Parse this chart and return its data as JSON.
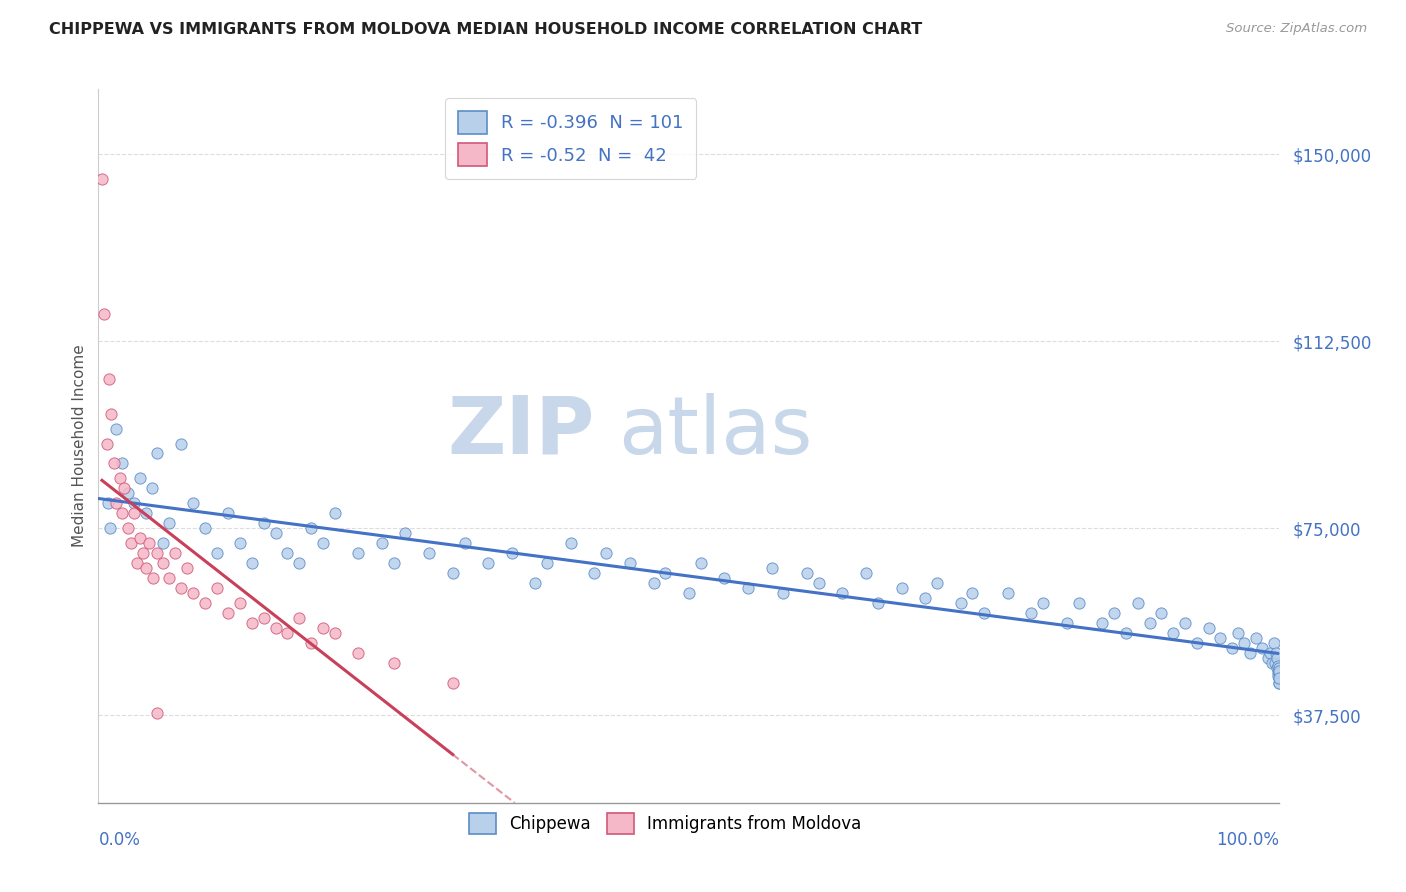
{
  "title": "CHIPPEWA VS IMMIGRANTS FROM MOLDOVA MEDIAN HOUSEHOLD INCOME CORRELATION CHART",
  "source": "Source: ZipAtlas.com",
  "ylabel": "Median Household Income",
  "yticks": [
    37500,
    75000,
    112500,
    150000
  ],
  "ytick_labels": [
    "$37,500",
    "$75,000",
    "$112,500",
    "$150,000"
  ],
  "xmin": 0.0,
  "xmax": 100.0,
  "ymin": 20000,
  "ymax": 163000,
  "R_chippewa": -0.396,
  "N_chippewa": 101,
  "R_moldova": -0.52,
  "N_moldova": 42,
  "color_chippewa_fill": "#b8d0ea",
  "color_chippewa_edge": "#5b8dc8",
  "color_moldova_fill": "#f5b8c8",
  "color_moldova_edge": "#d05878",
  "line_color_chippewa": "#4472c4",
  "line_color_moldova": "#c8405a",
  "watermark_zip_color": "#c8d8ea",
  "watermark_atlas_color": "#c8d8ea",
  "legend_label_chippewa": "Chippewa",
  "legend_label_moldova": "Immigrants from Moldova",
  "background_color": "#ffffff",
  "chippewa_x": [
    0.8,
    1.0,
    1.5,
    2.0,
    2.5,
    3.0,
    3.5,
    4.0,
    4.5,
    5.0,
    5.5,
    6.0,
    7.0,
    8.0,
    9.0,
    10.0,
    11.0,
    12.0,
    13.0,
    14.0,
    15.0,
    16.0,
    17.0,
    18.0,
    19.0,
    20.0,
    22.0,
    24.0,
    25.0,
    26.0,
    28.0,
    30.0,
    31.0,
    33.0,
    35.0,
    37.0,
    38.0,
    40.0,
    42.0,
    43.0,
    45.0,
    47.0,
    48.0,
    50.0,
    51.0,
    53.0,
    55.0,
    57.0,
    58.0,
    60.0,
    61.0,
    63.0,
    65.0,
    66.0,
    68.0,
    70.0,
    71.0,
    73.0,
    74.0,
    75.0,
    77.0,
    79.0,
    80.0,
    82.0,
    83.0,
    85.0,
    86.0,
    87.0,
    88.0,
    89.0,
    90.0,
    91.0,
    92.0,
    93.0,
    94.0,
    95.0,
    96.0,
    96.5,
    97.0,
    97.5,
    98.0,
    98.5,
    99.0,
    99.2,
    99.4,
    99.5,
    99.6,
    99.7,
    99.75,
    99.8,
    99.85,
    99.88,
    99.9,
    99.92,
    99.94,
    99.96,
    99.97,
    99.98,
    99.99,
    100.0,
    100.0
  ],
  "chippewa_y": [
    80000,
    75000,
    95000,
    88000,
    82000,
    80000,
    85000,
    78000,
    83000,
    90000,
    72000,
    76000,
    92000,
    80000,
    75000,
    70000,
    78000,
    72000,
    68000,
    76000,
    74000,
    70000,
    68000,
    75000,
    72000,
    78000,
    70000,
    72000,
    68000,
    74000,
    70000,
    66000,
    72000,
    68000,
    70000,
    64000,
    68000,
    72000,
    66000,
    70000,
    68000,
    64000,
    66000,
    62000,
    68000,
    65000,
    63000,
    67000,
    62000,
    66000,
    64000,
    62000,
    66000,
    60000,
    63000,
    61000,
    64000,
    60000,
    62000,
    58000,
    62000,
    58000,
    60000,
    56000,
    60000,
    56000,
    58000,
    54000,
    60000,
    56000,
    58000,
    54000,
    56000,
    52000,
    55000,
    53000,
    51000,
    54000,
    52000,
    50000,
    53000,
    51000,
    49000,
    50000,
    48000,
    52000,
    48000,
    50000,
    49000,
    47000,
    46000,
    47500,
    45500,
    46500,
    47000,
    44000,
    45000,
    46000,
    44000,
    46500,
    45000
  ],
  "moldova_x": [
    0.3,
    0.5,
    0.7,
    0.9,
    1.1,
    1.3,
    1.5,
    1.8,
    2.0,
    2.2,
    2.5,
    2.8,
    3.0,
    3.3,
    3.5,
    3.8,
    4.0,
    4.3,
    4.6,
    5.0,
    5.5,
    6.0,
    6.5,
    7.0,
    7.5,
    8.0,
    9.0,
    10.0,
    11.0,
    12.0,
    13.0,
    14.0,
    15.0,
    16.0,
    17.0,
    18.0,
    19.0,
    20.0,
    22.0,
    25.0,
    30.0,
    5.0
  ],
  "moldova_y": [
    145000,
    118000,
    92000,
    105000,
    98000,
    88000,
    80000,
    85000,
    78000,
    83000,
    75000,
    72000,
    78000,
    68000,
    73000,
    70000,
    67000,
    72000,
    65000,
    70000,
    68000,
    65000,
    70000,
    63000,
    67000,
    62000,
    60000,
    63000,
    58000,
    60000,
    56000,
    57000,
    55000,
    54000,
    57000,
    52000,
    55000,
    54000,
    50000,
    48000,
    44000,
    38000
  ]
}
